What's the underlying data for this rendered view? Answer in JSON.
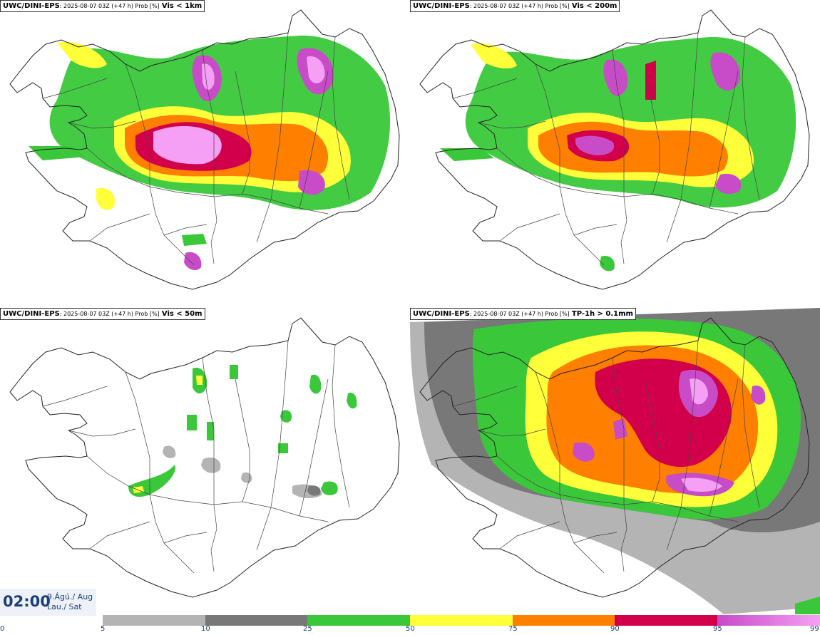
{
  "panels": [
    {
      "model": "UWC/DINI-EPS",
      "meta": ": 2025-08-07 03Z (+47 h) Prob [%]",
      "variable": "Vis < 1km"
    },
    {
      "model": "UWC/DINI-EPS",
      "meta": ": 2025-08-07 03Z (+47 h) Prob [%]",
      "variable": "Vis < 200m"
    },
    {
      "model": "UWC/DINI-EPS",
      "meta": ": 2025-08-07 03Z (+47 h) Prob [%]",
      "variable": "Vis < 50m"
    },
    {
      "model": "UWC/DINI-EPS",
      "meta": ": 2025-08-07 03Z (+47 h) Prob [%]",
      "variable": "TP-1h > 0.1mm"
    }
  ],
  "valid_time": {
    "time": "02:00",
    "date_line1": "9.Ágú./ Aug",
    "date_line2": "Lau./ Sat"
  },
  "colorbar": {
    "ticks": [
      "0",
      "5",
      "10",
      "25",
      "50",
      "75",
      "90",
      "95",
      "99"
    ],
    "colors": {
      "c5": "#b4b4b4",
      "c10": "#787878",
      "c25": "#3ac83a",
      "c50": "#ffff3a",
      "c75": "#ff7f00",
      "c90": "#d2004b",
      "c95": "#c84bc8",
      "c99": "#f5a0f5"
    }
  }
}
